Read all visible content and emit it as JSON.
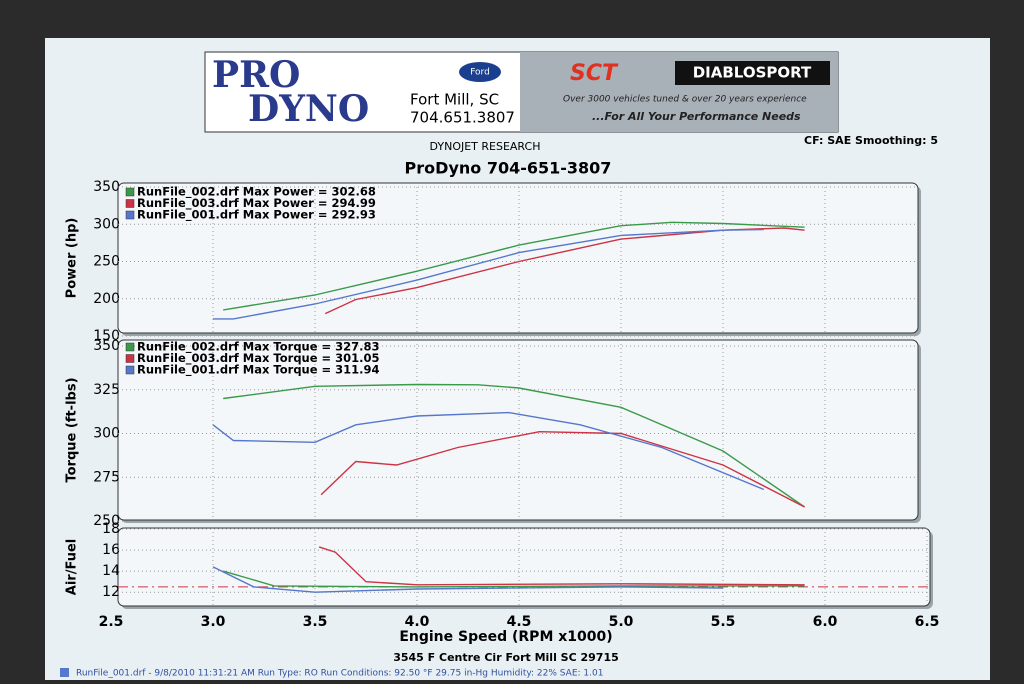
{
  "header": {
    "logo_top": "PRO",
    "logo_bottom": "DYNO",
    "city": "Fort Mill, SC",
    "phone": "704.651.3807",
    "ford": "Ford",
    "sct": "SCT",
    "diablo": "DIABLOSPORT",
    "tagline": "Over 3000 vehicles tuned & over 20 years experience",
    "slogan": "...For All Your Performance Needs",
    "maker": "DYNOJET RESEARCH",
    "settings": "CF: SAE  Smoothing: 5",
    "title": "ProDyno 704-651-3807"
  },
  "chart_data": [
    {
      "type": "line",
      "ylabel": "Power (hp)",
      "ylim": [
        150,
        350
      ],
      "yticks": [
        150,
        200,
        250,
        300,
        350
      ],
      "grid": true,
      "series": [
        {
          "name": "RunFile_002.drf Max Power = 302.68",
          "color": "#3a9a4a",
          "x": [
            3.05,
            3.5,
            4.0,
            4.5,
            5.0,
            5.25,
            5.5,
            5.9
          ],
          "values": [
            185,
            205,
            237,
            272,
            298,
            302.68,
            301,
            296
          ]
        },
        {
          "name": "RunFile_003.drf Max Power = 294.99",
          "color": "#cc3344",
          "x": [
            3.55,
            3.7,
            4.0,
            4.5,
            5.0,
            5.5,
            5.8,
            5.9
          ],
          "values": [
            180,
            199,
            215,
            250,
            280,
            292,
            294.99,
            292
          ]
        },
        {
          "name": "RunFile_001.drf Max Power = 292.93",
          "color": "#5577cc",
          "x": [
            3.0,
            3.1,
            3.5,
            4.0,
            4.5,
            5.0,
            5.5,
            5.7
          ],
          "values": [
            173,
            173,
            193,
            225,
            262,
            285,
            292,
            292.93
          ]
        }
      ]
    },
    {
      "type": "line",
      "ylabel": "Torque (ft-lbs)",
      "ylim": [
        250,
        350
      ],
      "yticks": [
        250,
        275,
        300,
        325,
        350
      ],
      "grid": true,
      "series": [
        {
          "name": "RunFile_002.drf Max Torque = 327.83",
          "color": "#3a9a4a",
          "x": [
            3.05,
            3.5,
            4.0,
            4.3,
            4.5,
            5.0,
            5.5,
            5.9
          ],
          "values": [
            320,
            327,
            328,
            327.83,
            326,
            315,
            290,
            258
          ]
        },
        {
          "name": "RunFile_003.drf Max Torque = 301.05",
          "color": "#cc3344",
          "x": [
            3.53,
            3.7,
            3.9,
            4.2,
            4.6,
            5.0,
            5.5,
            5.9
          ],
          "values": [
            265,
            284,
            282,
            292,
            301.05,
            300,
            282,
            258
          ]
        },
        {
          "name": "RunFile_001.drf Max Torque = 311.94",
          "color": "#5577cc",
          "x": [
            3.0,
            3.1,
            3.5,
            3.7,
            4.0,
            4.45,
            4.8,
            5.2,
            5.7
          ],
          "values": [
            305,
            296,
            295,
            305,
            310,
            311.94,
            305,
            292,
            268
          ]
        }
      ]
    },
    {
      "type": "line",
      "ylabel": "Air/Fuel",
      "ylim": [
        10.5,
        18
      ],
      "yticks": [
        12,
        14,
        16,
        18
      ],
      "grid": true,
      "reference": 12.5,
      "xlabel": "Engine Speed (RPM x1000)",
      "xlim": [
        2.5,
        6.5
      ],
      "xticks": [
        2.5,
        {
          "value": 3,
          "label": "3.0"
        },
        3.5,
        {
          "value": 4,
          "label": "4.0"
        },
        4.5,
        {
          "value": 5,
          "label": "5.0"
        },
        5.5,
        {
          "value": 6,
          "label": "6.0"
        },
        6.5
      ],
      "series": [
        {
          "color": "#3a9a4a",
          "x": [
            3.05,
            3.3,
            4.0,
            5.0,
            5.9
          ],
          "values": [
            14,
            12.6,
            12.5,
            12.6,
            12.6
          ]
        },
        {
          "color": "#cc3344",
          "x": [
            3.52,
            3.6,
            3.75,
            4.0,
            5.0,
            5.9
          ],
          "values": [
            16.3,
            15.8,
            13,
            12.7,
            12.8,
            12.7
          ]
        },
        {
          "color": "#5577cc",
          "x": [
            3.0,
            3.2,
            3.5,
            4.0,
            5.0,
            5.5
          ],
          "values": [
            14.4,
            12.5,
            12.0,
            12.3,
            12.5,
            12.4
          ]
        }
      ]
    }
  ],
  "footer": {
    "address": "3545 F Centre Cir Fort Mill SC 29715",
    "run": "RunFile_001.drf - 9/8/2010 11:31:21 AM  Run Type: RO  Run Conditions: 92.50 °F 29.75 in-Hg  Humidity: 22%  SAE: 1.01"
  }
}
